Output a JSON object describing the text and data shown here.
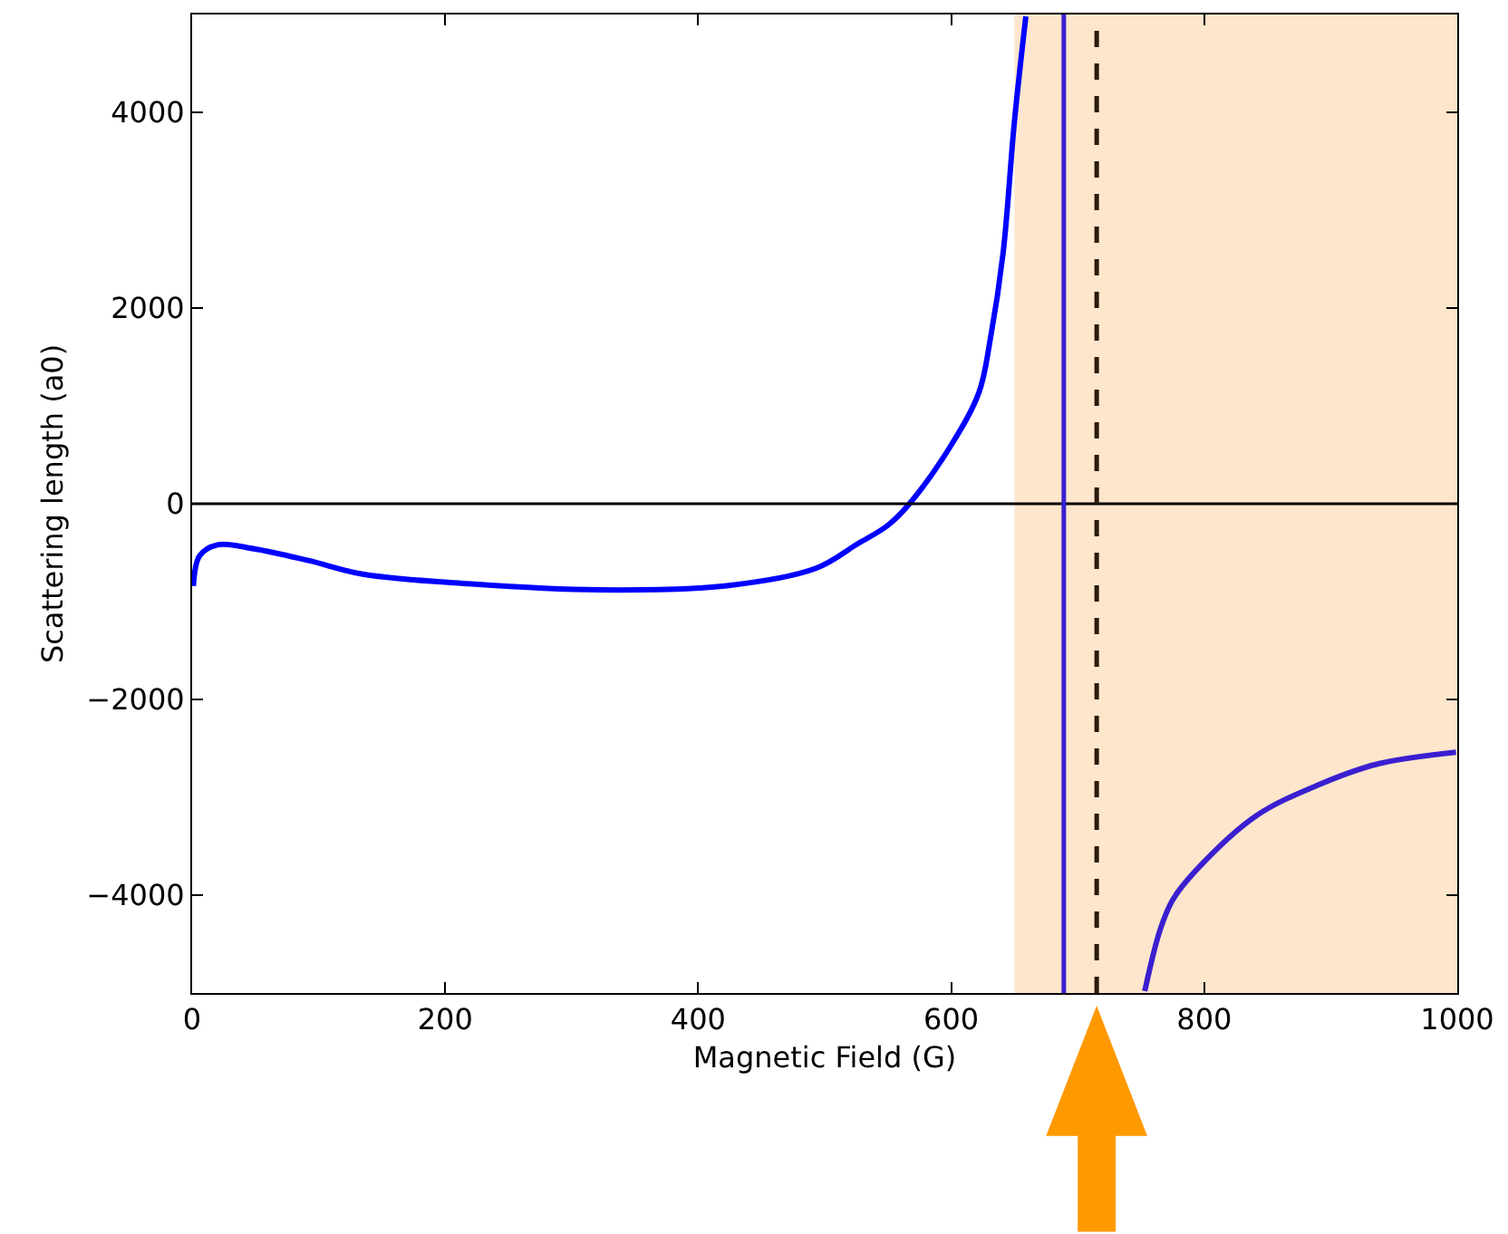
{
  "chart_data": {
    "type": "line",
    "xlabel": "Magnetic Field (G)",
    "ylabel": "Scattering length (a0)",
    "series": [
      {
        "color": "#0000ff",
        "x": [
          1,
          6,
          20,
          49,
          92,
          135,
          221,
          321,
          421,
          493,
          526,
          550,
          567,
          600,
          622,
          631,
          641,
          650,
          659
        ],
        "values": [
          -840,
          -530,
          -420,
          -460,
          -580,
          -720,
          -820,
          -880,
          -840,
          -660,
          -410,
          -220,
          0,
          600,
          1140,
          1690,
          2560,
          3910,
          4980
        ]
      },
      {
        "color": "#3a1fd0",
        "x": [
          753,
          765,
          775,
          794,
          841,
          889,
          937,
          999
        ],
        "values": [
          -4980,
          -4360,
          -4050,
          -3740,
          -3190,
          -2880,
          -2660,
          -2540
        ]
      }
    ],
    "xlim": [
      0,
      1000
    ],
    "ylim": [
      -5000,
      5000
    ],
    "xticks": [
      0,
      200,
      400,
      600,
      800,
      1000
    ],
    "yticks": [
      -4000,
      -2000,
      0,
      2000,
      4000
    ],
    "ref_lines": [
      {
        "axis": "y",
        "value": 0,
        "color": "#000000",
        "line_style": "solid"
      },
      {
        "axis": "x",
        "value": 689,
        "color": "#3a1fd0",
        "line_style": "solid"
      },
      {
        "axis": "x",
        "value": 715,
        "color": "#2a1a0a",
        "line_style": "dashed"
      }
    ],
    "bands": [
      {
        "axis": "x",
        "from": 650,
        "to": 1000,
        "color": "#fde6cc"
      }
    ],
    "grid": false,
    "marker": "none",
    "line_style": "solid"
  }
}
